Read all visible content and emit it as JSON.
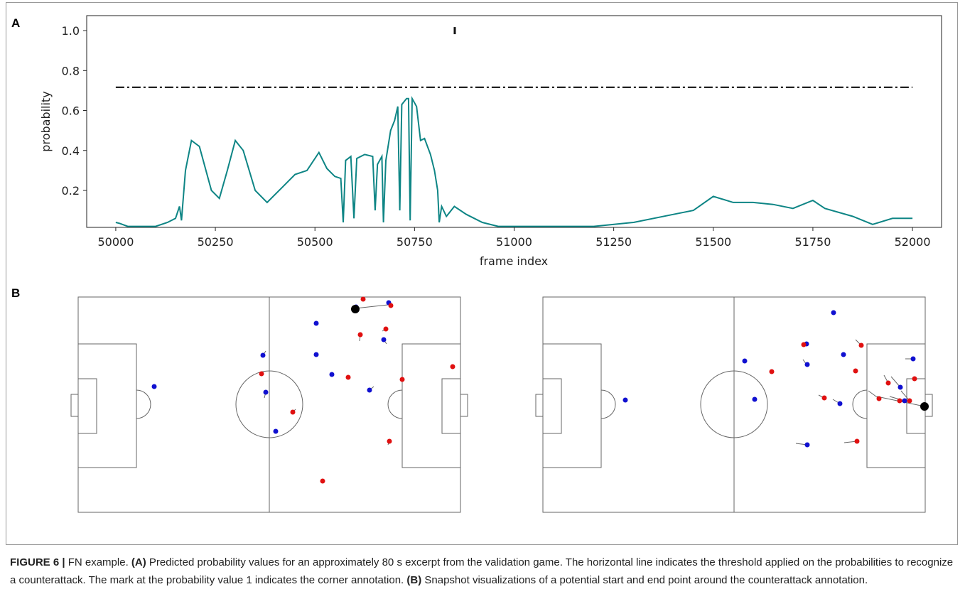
{
  "panels": {
    "a_label": "A",
    "b_label": "B"
  },
  "chart_data": {
    "type": "line",
    "x_label": "frame index",
    "y_label": "probability",
    "xlim": [
      49927,
      52073
    ],
    "ylim": [
      0.015,
      1.075
    ],
    "xticks": [
      50000,
      50250,
      50500,
      50750,
      51000,
      51250,
      51500,
      51750,
      52000
    ],
    "yticks": [
      0.2,
      0.4,
      0.6,
      0.8,
      {
        "value": 1,
        "label": "1.0"
      }
    ],
    "series": [
      {
        "kind": "line",
        "color": "#0e8585",
        "x": [
          50000,
          50010,
          50030,
          50100,
          50130,
          50150,
          50160,
          50165,
          50175,
          50190,
          50210,
          50240,
          50260,
          50280,
          50300,
          50320,
          50350,
          50380,
          50420,
          50450,
          50480,
          50510,
          50530,
          50550,
          50565,
          50571,
          50577,
          50590,
          50598,
          50605,
          50625,
          50645,
          50651,
          50657,
          50668,
          50672,
          50678,
          50690,
          50700,
          50708,
          50713,
          50718,
          50730,
          50735,
          50739,
          50744,
          50755,
          50765,
          50775,
          50790,
          50800,
          50808,
          50812,
          50818,
          50830,
          50850,
          50880,
          50920,
          50960,
          51000,
          51100,
          51200,
          51300,
          51400,
          51450,
          51500,
          51550,
          51600,
          51650,
          51700,
          51750,
          51780,
          51850,
          51900,
          51950,
          52000
        ],
        "values": [
          0.04,
          0.035,
          0.02,
          0.02,
          0.04,
          0.06,
          0.12,
          0.05,
          0.3,
          0.45,
          0.42,
          0.2,
          0.16,
          0.3,
          0.45,
          0.4,
          0.2,
          0.14,
          0.22,
          0.28,
          0.3,
          0.39,
          0.31,
          0.27,
          0.26,
          0.04,
          0.35,
          0.37,
          0.06,
          0.36,
          0.38,
          0.37,
          0.1,
          0.33,
          0.37,
          0.04,
          0.35,
          0.5,
          0.55,
          0.62,
          0.1,
          0.63,
          0.66,
          0.66,
          0.05,
          0.66,
          0.62,
          0.45,
          0.46,
          0.38,
          0.3,
          0.2,
          0.04,
          0.12,
          0.07,
          0.12,
          0.08,
          0.04,
          0.02,
          0.02,
          0.02,
          0.02,
          0.04,
          0.08,
          0.1,
          0.17,
          0.14,
          0.14,
          0.13,
          0.11,
          0.15,
          0.11,
          0.07,
          0.03,
          0.06,
          0.06
        ]
      },
      {
        "kind": "dash-dot",
        "color": "#222222",
        "x": [
          50000,
          52000
        ],
        "values": [
          0.716,
          0.716
        ]
      },
      {
        "kind": "tick",
        "color": "#111111",
        "x": [
          50851
        ],
        "values": [
          1
        ]
      }
    ]
  },
  "caption": {
    "figure": "FIGURE 6 |",
    "parts": [
      " FN example. ",
      "(A)",
      " Predicted probability values for an approximately 80 s excerpt from the validation game. The horizontal line indicates the threshold applied on the probabilities to recognize a counterattack. The mark at the probability value 1 indicates the corner annotation. ",
      "(B)",
      " Snapshot visualizations of a potential start and end point around the counterattack annotation."
    ]
  }
}
